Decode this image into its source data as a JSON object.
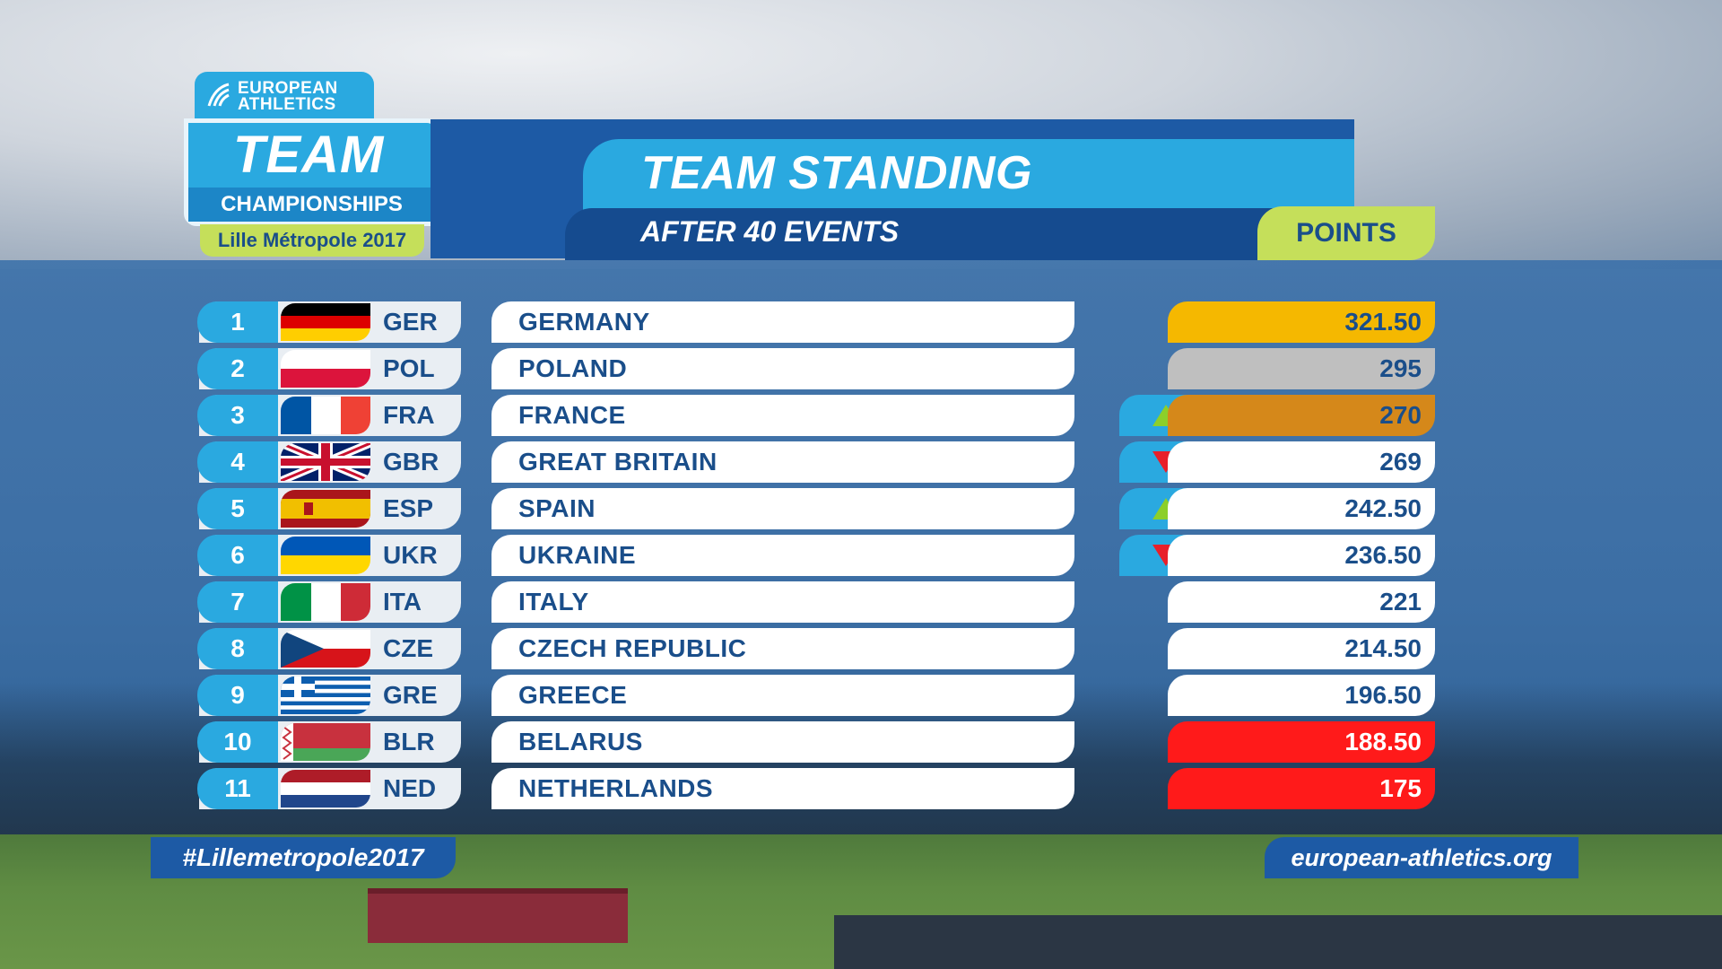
{
  "logo": {
    "org_line1": "EUROPEAN",
    "org_line2": "ATHLETICS",
    "team": "TEAM",
    "championships": "CHAMPIONSHIPS",
    "city": "Lille Métropole 2017"
  },
  "header": {
    "title": "TEAM STANDING",
    "subtitle": "AFTER 40 EVENTS",
    "points_label": "POINTS"
  },
  "standings": [
    {
      "rank": "1",
      "code": "GER",
      "name": "GERMANY",
      "points": "321.50",
      "trend": "none",
      "highlight": "#f5b800",
      "text_color": "#1a4e8a"
    },
    {
      "rank": "2",
      "code": "POL",
      "name": "POLAND",
      "points": "295",
      "trend": "none",
      "highlight": "#bfbfbf",
      "text_color": "#1a4e8a"
    },
    {
      "rank": "3",
      "code": "FRA",
      "name": "FRANCE",
      "points": "270",
      "trend": "up",
      "highlight": "#d5881a",
      "text_color": "#1a4e8a"
    },
    {
      "rank": "4",
      "code": "GBR",
      "name": "GREAT BRITAIN",
      "points": "269",
      "trend": "down",
      "highlight": "#ffffff",
      "text_color": "#1a4e8a"
    },
    {
      "rank": "5",
      "code": "ESP",
      "name": "SPAIN",
      "points": "242.50",
      "trend": "up",
      "highlight": "#ffffff",
      "text_color": "#1a4e8a"
    },
    {
      "rank": "6",
      "code": "UKR",
      "name": "UKRAINE",
      "points": "236.50",
      "trend": "down",
      "highlight": "#ffffff",
      "text_color": "#1a4e8a"
    },
    {
      "rank": "7",
      "code": "ITA",
      "name": "ITALY",
      "points": "221",
      "trend": "none",
      "highlight": "#ffffff",
      "text_color": "#1a4e8a"
    },
    {
      "rank": "8",
      "code": "CZE",
      "name": "CZECH REPUBLIC",
      "points": "214.50",
      "trend": "none",
      "highlight": "#ffffff",
      "text_color": "#1a4e8a"
    },
    {
      "rank": "9",
      "code": "GRE",
      "name": "GREECE",
      "points": "196.50",
      "trend": "none",
      "highlight": "#ffffff",
      "text_color": "#1a4e8a"
    },
    {
      "rank": "10",
      "code": "BLR",
      "name": "BELARUS",
      "points": "188.50",
      "trend": "none",
      "highlight": "#ff1a1a",
      "text_color": "#ffffff"
    },
    {
      "rank": "11",
      "code": "NED",
      "name": "NETHERLANDS",
      "points": "175",
      "trend": "none",
      "highlight": "#ff1a1a",
      "text_color": "#ffffff"
    }
  ],
  "colors": {
    "accent_blue": "#2aa9e0",
    "dark_blue": "#1d5aa5",
    "lime": "#c5df5a",
    "up_arrow": "#8ccf2a",
    "down_arrow": "#e8202a"
  },
  "footer": {
    "hashtag": "#Lillemetropole2017",
    "website": "european-athletics.org"
  }
}
